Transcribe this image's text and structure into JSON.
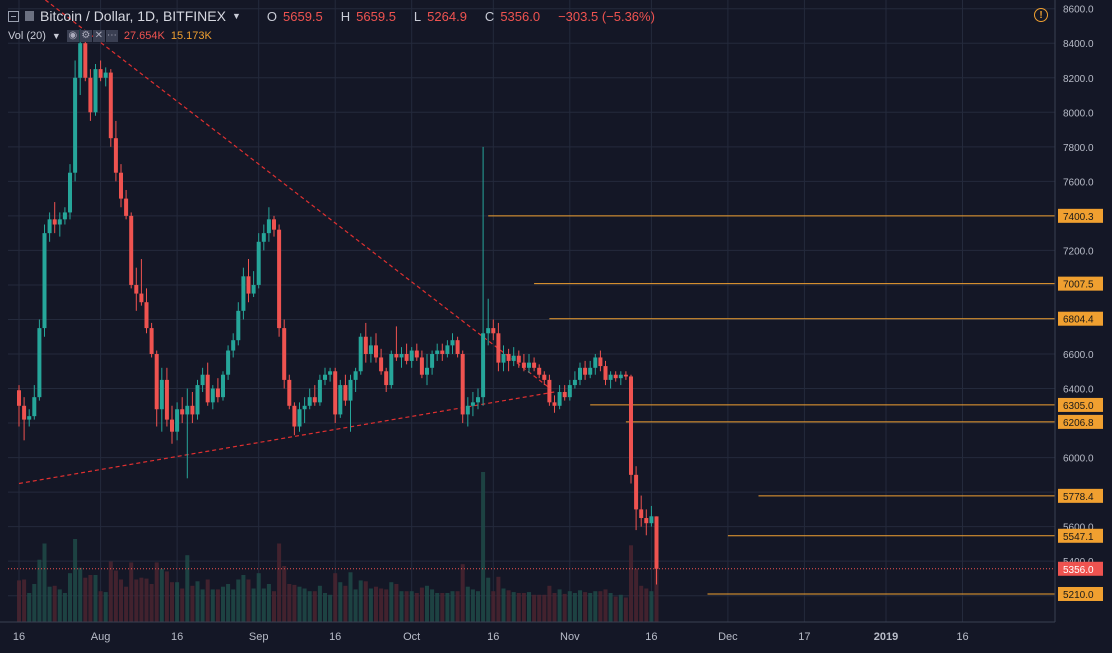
{
  "header": {
    "symbol": "Bitcoin / Dollar, 1D, BITFINEX",
    "o_label": "O",
    "o_value": "5659.5",
    "h_label": "H",
    "h_value": "5659.5",
    "l_label": "L",
    "l_value": "5264.9",
    "c_label": "C",
    "c_value": "5356.0",
    "change": "−303.5 (−5.36%)",
    "vol_label": "Vol (20)",
    "vol_value1": "27.654K",
    "vol_value2": "15.173K",
    "alert_icon": "!"
  },
  "colors": {
    "background": "#141726",
    "grid": "#242a3c",
    "up": "#26a69a",
    "down": "#ef5350",
    "level": "#f0a030",
    "trend": "#e03030",
    "axis_text": "#b8bcc8"
  },
  "chart_data": {
    "type": "candlestick",
    "title": "Bitcoin / Dollar, 1D, BITFINEX",
    "ylim": [
      5100,
      8700
    ],
    "y_ticks": [
      8600,
      8400,
      8200,
      8000,
      7800,
      7600,
      7400,
      7200,
      7000,
      6800,
      6600,
      6400,
      6200,
      6000,
      5800,
      5600,
      5400,
      5200
    ],
    "x_ticks": [
      "16",
      "Aug",
      "16",
      "Sep",
      "16",
      "Oct",
      "16",
      "Nov",
      "16",
      "Dec",
      "17",
      "2019",
      "16"
    ],
    "x_tick_days": [
      0,
      16,
      31,
      47,
      62,
      77,
      93,
      108,
      124,
      139,
      154,
      170,
      185
    ],
    "current_price": {
      "value": 5356.0,
      "label": "5356.0"
    },
    "levels": [
      {
        "value": 7400.3,
        "label": "7400.3",
        "from_day": 92
      },
      {
        "value": 7007.5,
        "label": "7007.5",
        "from_day": 101
      },
      {
        "value": 6804.4,
        "label": "6804.4",
        "from_day": 104
      },
      {
        "value": 6305.0,
        "label": "6305.0",
        "from_day": 112
      },
      {
        "value": 6206.8,
        "label": "6206.8",
        "from_day": 119
      },
      {
        "value": 5778.4,
        "label": "5778.4",
        "from_day": 145
      },
      {
        "value": 5547.1,
        "label": "5547.1",
        "from_day": 139
      },
      {
        "value": 5210.0,
        "label": "5210.0",
        "from_day": 135
      }
    ],
    "trendlines": [
      {
        "from": [
          3,
          8700
        ],
        "to": [
          104,
          6404
        ]
      },
      {
        "from": [
          0,
          5850
        ],
        "to": [
          105,
          6380
        ]
      }
    ],
    "candles": [
      [
        6390,
        6420,
        6180,
        6300
      ],
      [
        6300,
        6350,
        6100,
        6220
      ],
      [
        6220,
        6280,
        6180,
        6240
      ],
      [
        6240,
        6420,
        6220,
        6350
      ],
      [
        6350,
        6800,
        6330,
        6750
      ],
      [
        6750,
        7350,
        6700,
        7300
      ],
      [
        7300,
        7420,
        7250,
        7380
      ],
      [
        7380,
        7480,
        7300,
        7350
      ],
      [
        7350,
        7420,
        7280,
        7380
      ],
      [
        7380,
        7450,
        7350,
        7420
      ],
      [
        7420,
        7700,
        7380,
        7650
      ],
      [
        7650,
        8300,
        7600,
        8200
      ],
      [
        8200,
        8480,
        8100,
        8400
      ],
      [
        8400,
        8450,
        8180,
        8200
      ],
      [
        8200,
        8250,
        7950,
        8000
      ],
      [
        8000,
        8280,
        7980,
        8250
      ],
      [
        8250,
        8300,
        8180,
        8200
      ],
      [
        8200,
        8260,
        8150,
        8230
      ],
      [
        8230,
        8250,
        7800,
        7850
      ],
      [
        7850,
        7950,
        7600,
        7650
      ],
      [
        7650,
        7700,
        7450,
        7500
      ],
      [
        7500,
        7550,
        7380,
        7400
      ],
      [
        7400,
        7420,
        6980,
        7000
      ],
      [
        7000,
        7100,
        6850,
        6950
      ],
      [
        6950,
        7150,
        6880,
        6900
      ],
      [
        6900,
        6980,
        6720,
        6750
      ],
      [
        6750,
        6780,
        6580,
        6600
      ],
      [
        6600,
        6620,
        6180,
        6280
      ],
      [
        6280,
        6520,
        6150,
        6450
      ],
      [
        6450,
        6520,
        6180,
        6220
      ],
      [
        6220,
        6300,
        6080,
        6150
      ],
      [
        6150,
        6320,
        6100,
        6280
      ],
      [
        6280,
        6350,
        6200,
        6250
      ],
      [
        6250,
        6400,
        5880,
        6300
      ],
      [
        6300,
        6380,
        6200,
        6250
      ],
      [
        6250,
        6450,
        6220,
        6420
      ],
      [
        6420,
        6520,
        6380,
        6480
      ],
      [
        6480,
        6550,
        6300,
        6320
      ],
      [
        6320,
        6420,
        6280,
        6400
      ],
      [
        6400,
        6460,
        6320,
        6350
      ],
      [
        6350,
        6500,
        6330,
        6480
      ],
      [
        6480,
        6650,
        6450,
        6620
      ],
      [
        6620,
        6720,
        6580,
        6680
      ],
      [
        6680,
        6900,
        6650,
        6850
      ],
      [
        6850,
        7100,
        6800,
        7050
      ],
      [
        7050,
        7150,
        6900,
        6950
      ],
      [
        6950,
        7080,
        6930,
        7000
      ],
      [
        7000,
        7300,
        6980,
        7250
      ],
      [
        7250,
        7350,
        7200,
        7300
      ],
      [
        7300,
        7450,
        7250,
        7380
      ],
      [
        7380,
        7400,
        7280,
        7320
      ],
      [
        7320,
        7350,
        6700,
        6750
      ],
      [
        6750,
        6800,
        6400,
        6450
      ],
      [
        6450,
        6480,
        6280,
        6300
      ],
      [
        6300,
        6320,
        6130,
        6180
      ],
      [
        6180,
        6320,
        6150,
        6280
      ],
      [
        6280,
        6350,
        6200,
        6300
      ],
      [
        6300,
        6400,
        6280,
        6350
      ],
      [
        6350,
        6420,
        6300,
        6320
      ],
      [
        6320,
        6480,
        6300,
        6450
      ],
      [
        6450,
        6520,
        6420,
        6480
      ],
      [
        6480,
        6520,
        6440,
        6500
      ],
      [
        6500,
        6520,
        6200,
        6250
      ],
      [
        6250,
        6450,
        6230,
        6420
      ],
      [
        6420,
        6480,
        6300,
        6330
      ],
      [
        6330,
        6480,
        6150,
        6450
      ],
      [
        6450,
        6520,
        6380,
        6500
      ],
      [
        6500,
        6720,
        6480,
        6700
      ],
      [
        6700,
        6780,
        6550,
        6600
      ],
      [
        6600,
        6700,
        6550,
        6650
      ],
      [
        6650,
        6720,
        6550,
        6580
      ],
      [
        6580,
        6630,
        6480,
        6500
      ],
      [
        6500,
        6520,
        6380,
        6420
      ],
      [
        6420,
        6620,
        6400,
        6600
      ],
      [
        6600,
        6760,
        6560,
        6580
      ],
      [
        6580,
        6640,
        6520,
        6600
      ],
      [
        6600,
        6660,
        6540,
        6560
      ],
      [
        6560,
        6640,
        6520,
        6620
      ],
      [
        6620,
        6660,
        6560,
        6580
      ],
      [
        6580,
        6620,
        6460,
        6480
      ],
      [
        6480,
        6600,
        6420,
        6520
      ],
      [
        6520,
        6620,
        6480,
        6600
      ],
      [
        6600,
        6660,
        6560,
        6620
      ],
      [
        6620,
        6660,
        6560,
        6600
      ],
      [
        6600,
        6680,
        6580,
        6650
      ],
      [
        6650,
        6720,
        6600,
        6680
      ],
      [
        6680,
        6700,
        6580,
        6600
      ],
      [
        6600,
        6620,
        6200,
        6250
      ],
      [
        6250,
        6350,
        6180,
        6300
      ],
      [
        6300,
        6380,
        6240,
        6320
      ],
      [
        6320,
        6400,
        6280,
        6350
      ],
      [
        6350,
        7800,
        6300,
        6720
      ],
      [
        6720,
        6920,
        6650,
        6750
      ],
      [
        6750,
        6800,
        6680,
        6720
      ],
      [
        6720,
        6780,
        6500,
        6550
      ],
      [
        6550,
        6650,
        6500,
        6600
      ],
      [
        6600,
        6630,
        6500,
        6560
      ],
      [
        6560,
        6640,
        6530,
        6590
      ],
      [
        6590,
        6620,
        6520,
        6550
      ],
      [
        6550,
        6600,
        6500,
        6520
      ],
      [
        6520,
        6600,
        6490,
        6550
      ],
      [
        6550,
        6580,
        6500,
        6520
      ],
      [
        6520,
        6540,
        6460,
        6480
      ],
      [
        6480,
        6500,
        6420,
        6450
      ],
      [
        6450,
        6480,
        6300,
        6320
      ],
      [
        6320,
        6360,
        6260,
        6300
      ],
      [
        6300,
        6420,
        6280,
        6380
      ],
      [
        6380,
        6420,
        6330,
        6350
      ],
      [
        6350,
        6450,
        6330,
        6420
      ],
      [
        6420,
        6500,
        6400,
        6450
      ],
      [
        6450,
        6550,
        6420,
        6520
      ],
      [
        6520,
        6560,
        6450,
        6480
      ],
      [
        6480,
        6560,
        6460,
        6520
      ],
      [
        6520,
        6600,
        6480,
        6580
      ],
      [
        6580,
        6620,
        6500,
        6530
      ],
      [
        6530,
        6560,
        6420,
        6450
      ],
      [
        6450,
        6500,
        6400,
        6480
      ],
      [
        6480,
        6500,
        6440,
        6460
      ],
      [
        6460,
        6500,
        6420,
        6480
      ],
      [
        6480,
        6500,
        6450,
        6470
      ],
      [
        6470,
        6480,
        5850,
        5900
      ],
      [
        5900,
        5950,
        5580,
        5700
      ],
      [
        5700,
        5780,
        5600,
        5650
      ],
      [
        5650,
        5700,
        5550,
        5620
      ],
      [
        5620,
        5720,
        5600,
        5660
      ],
      [
        5659.5,
        5659.5,
        5264.9,
        5356.0
      ]
    ]
  }
}
